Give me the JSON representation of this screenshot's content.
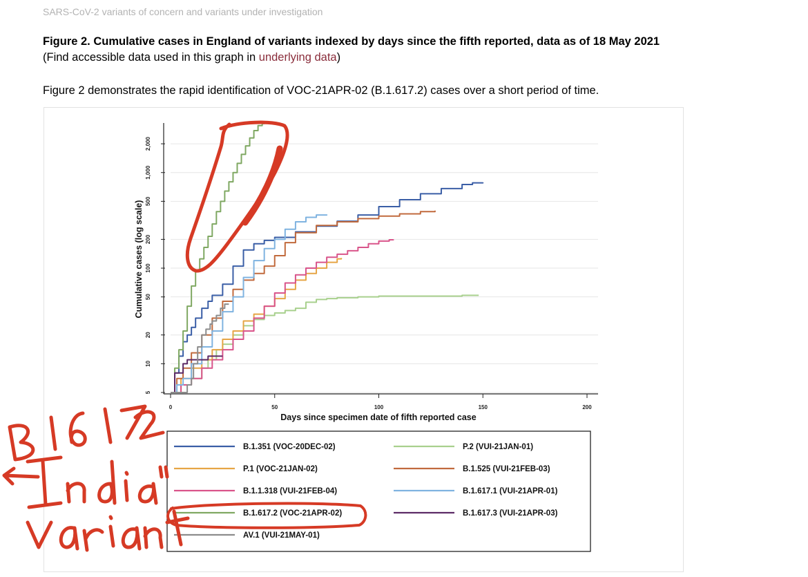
{
  "page_header": "SARS-CoV-2 variants of concern and variants under investigation",
  "figure": {
    "title": "Figure 2. Cumulative cases in England of variants indexed by days since the fifth reported, data as of 18 May 2021",
    "subtitle_before": "(Find accessible data used in this graph in ",
    "subtitle_link": "underlying data",
    "subtitle_after": ")",
    "description": "Figure 2 demonstrates the rapid identification of VOC-21APR-02 (B.1.617.2) cases over a short period of time."
  },
  "annotation": {
    "handwriting": [
      "B1617.2",
      "India",
      "variant"
    ],
    "color": "#d63a25"
  },
  "chart_data": {
    "type": "line",
    "title": "",
    "xlabel": "Days since specimen date of fifth reported case",
    "ylabel": "Cumulative cases (log scale)",
    "x_ticks": [
      0,
      50,
      100,
      150,
      200
    ],
    "y_ticks": [
      5,
      10,
      20,
      50,
      100,
      200,
      500,
      1000,
      2000
    ],
    "y_tick_labels": [
      "5",
      "10",
      "20",
      "50",
      "100",
      "200",
      "500",
      "1,000",
      "2,000"
    ],
    "xlim": [
      0,
      200
    ],
    "ylim": [
      5,
      3300
    ],
    "y_scale": "log",
    "grid": "horizontal",
    "legend_position": "bottom",
    "series": [
      {
        "name": "B.1.351 (VOC-20DEC-02)",
        "color": "#3a5ea6",
        "x": [
          0,
          2,
          4,
          6,
          8,
          10,
          12,
          15,
          18,
          20,
          25,
          30,
          35,
          40,
          45,
          50,
          60,
          70,
          80,
          90,
          100,
          110,
          120,
          130,
          140,
          145,
          150
        ],
        "y": [
          5,
          8,
          12,
          17,
          20,
          24,
          30,
          38,
          45,
          52,
          68,
          105,
          155,
          180,
          195,
          210,
          240,
          275,
          310,
          360,
          440,
          520,
          600,
          680,
          750,
          780,
          790
        ]
      },
      {
        "name": "P.2 (VUI-21JAN-01)",
        "color": "#a8d08d",
        "x": [
          0,
          5,
          10,
          15,
          18,
          22,
          25,
          30,
          35,
          40,
          45,
          50,
          55,
          60,
          65,
          70,
          75,
          80,
          90,
          100,
          120,
          140,
          148
        ],
        "y": [
          5,
          6,
          7,
          9,
          11,
          14,
          16,
          20,
          25,
          29,
          32,
          34,
          36,
          38,
          44,
          47,
          48,
          49,
          50,
          51,
          51,
          52,
          52
        ]
      },
      {
        "name": "P.1 (VOC-21JAN-02)",
        "color": "#e6a545",
        "x": [
          0,
          5,
          10,
          15,
          20,
          25,
          30,
          35,
          40,
          45,
          50,
          55,
          60,
          65,
          70,
          75,
          80,
          82
        ],
        "y": [
          5,
          7,
          9,
          11,
          14,
          18,
          22,
          28,
          33,
          40,
          48,
          60,
          75,
          88,
          100,
          115,
          125,
          128
        ]
      },
      {
        "name": "B.1.525 (VUI-21FEB-03)",
        "color": "#c16a3d",
        "x": [
          0,
          3,
          6,
          10,
          15,
          20,
          25,
          30,
          35,
          40,
          45,
          50,
          55,
          60,
          70,
          80,
          90,
          100,
          110,
          120,
          127
        ],
        "y": [
          5,
          7,
          9,
          13,
          20,
          30,
          45,
          60,
          75,
          88,
          105,
          135,
          185,
          235,
          280,
          305,
          330,
          350,
          370,
          390,
          400
        ]
      },
      {
        "name": "B.1.1.318 (VUI-21FEB-04)",
        "color": "#d9548a",
        "x": [
          0,
          5,
          10,
          15,
          20,
          25,
          30,
          35,
          40,
          45,
          50,
          55,
          60,
          65,
          70,
          75,
          80,
          85,
          90,
          95,
          100,
          105,
          107
        ],
        "y": [
          5,
          6,
          7,
          9,
          11,
          14,
          18,
          22,
          30,
          40,
          55,
          70,
          85,
          100,
          115,
          130,
          140,
          152,
          165,
          180,
          192,
          198,
          200
        ]
      },
      {
        "name": "B.1.617.1 (VUI-21APR-01)",
        "color": "#7fb3e0",
        "x": [
          0,
          3,
          6,
          10,
          15,
          20,
          25,
          30,
          35,
          40,
          45,
          50,
          55,
          60,
          65,
          70,
          75
        ],
        "y": [
          5,
          6,
          7,
          10,
          15,
          22,
          35,
          50,
          80,
          120,
          160,
          200,
          255,
          305,
          340,
          360,
          365
        ]
      },
      {
        "name": "B.1.617.2 (VOC-21APR-02)",
        "color": "#7fa862",
        "x": [
          0,
          2,
          4,
          6,
          8,
          10,
          12,
          14,
          16,
          18,
          20,
          22,
          24,
          26,
          28,
          30,
          32,
          34,
          36,
          38,
          40,
          42,
          44,
          45
        ],
        "y": [
          5,
          9,
          14,
          22,
          40,
          65,
          95,
          125,
          165,
          215,
          290,
          390,
          500,
          640,
          800,
          1000,
          1250,
          1550,
          1900,
          2300,
          2750,
          3100,
          3250,
          3300
        ]
      },
      {
        "name": "B.1.617.3 (VUI-21APR-03)",
        "color": "#5c2a66",
        "x": [
          0,
          2,
          4,
          6,
          8,
          10,
          12,
          14,
          16,
          18,
          20,
          22,
          25
        ],
        "y": [
          5,
          8,
          8,
          10,
          11,
          11,
          11,
          11,
          11,
          12,
          12,
          12,
          12
        ]
      },
      {
        "name": "AV.1 (VUI-21MAY-01)",
        "color": "#8c8c8c",
        "x": [
          0,
          2,
          4,
          6,
          8,
          10,
          11,
          13,
          15,
          17,
          19,
          20,
          22,
          24,
          26,
          28
        ],
        "y": [
          5,
          5,
          5,
          5,
          6,
          7,
          10,
          15,
          20,
          23,
          26,
          28,
          32,
          38,
          42,
          42
        ]
      }
    ]
  }
}
